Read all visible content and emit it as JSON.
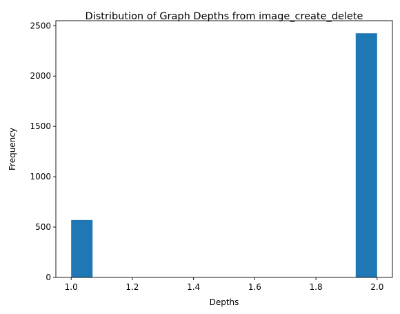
{
  "chart_data": {
    "type": "bar",
    "title": "Distribution of Graph Depths from image_create_delete",
    "xlabel": "Depths",
    "ylabel": "Frequency",
    "xlim": [
      0.95,
      2.05
    ],
    "ylim": [
      0,
      2550
    ],
    "bins": [
      {
        "x_start": 1.0,
        "x_end": 1.07,
        "value": 570
      },
      {
        "x_start": 1.93,
        "x_end": 2.0,
        "value": 2425
      }
    ],
    "xticks": [
      {
        "value": 1.0,
        "label": "1.0"
      },
      {
        "value": 1.2,
        "label": "1.2"
      },
      {
        "value": 1.4,
        "label": "1.4"
      },
      {
        "value": 1.6,
        "label": "1.6"
      },
      {
        "value": 1.8,
        "label": "1.8"
      },
      {
        "value": 2.0,
        "label": "2.0"
      }
    ],
    "yticks": [
      {
        "value": 0,
        "label": "0"
      },
      {
        "value": 500,
        "label": "500"
      },
      {
        "value": 1000,
        "label": "1000"
      },
      {
        "value": 1500,
        "label": "1500"
      },
      {
        "value": 2000,
        "label": "2000"
      },
      {
        "value": 2500,
        "label": "2500"
      }
    ],
    "bar_color": "#1f77b4",
    "grid": false,
    "legend": "none"
  }
}
